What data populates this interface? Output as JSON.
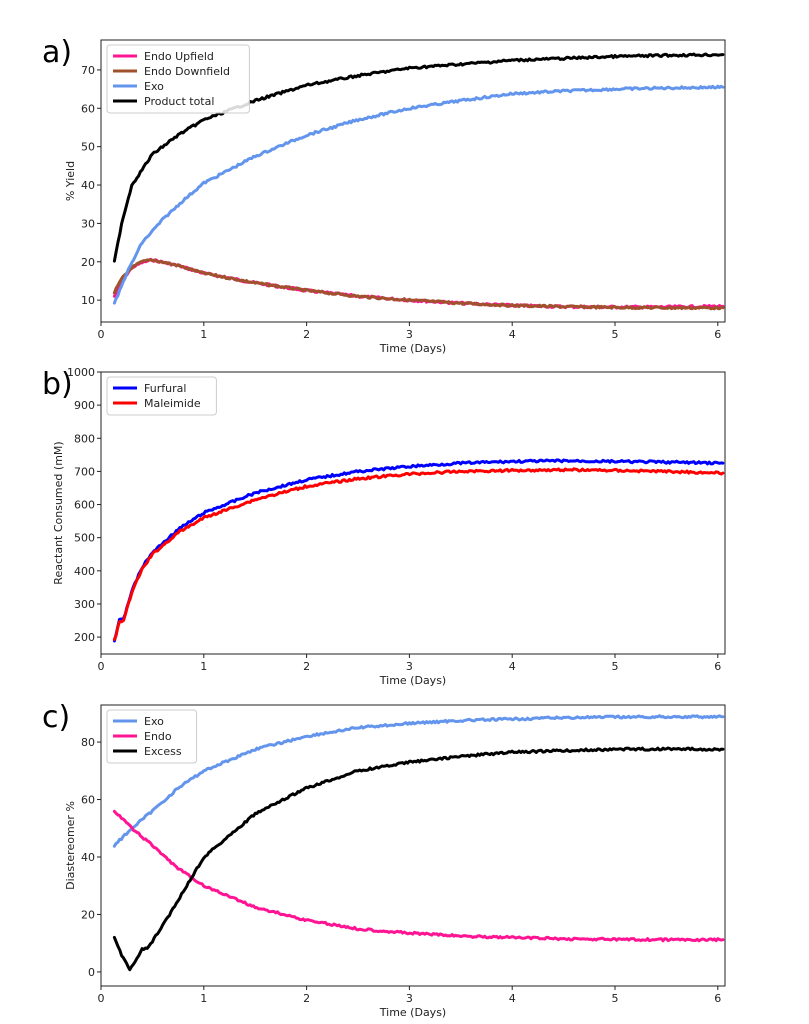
{
  "chart_data": [
    {
      "type": "line",
      "panel_label": "a)",
      "xlabel": "Time (Days)",
      "ylabel": "% Yield",
      "xlim": [
        0,
        6.07
      ],
      "ylim": [
        4.3,
        77.8
      ],
      "xticks": [
        0,
        1,
        2,
        3,
        4,
        5,
        6
      ],
      "yticks": [
        10,
        20,
        30,
        40,
        50,
        60,
        70
      ],
      "legend_position": "top-left",
      "series": [
        {
          "name": "Endo Upfield",
          "color": "#ff1493",
          "x": [
            0.13,
            0.2,
            0.3,
            0.4,
            0.5,
            0.75,
            1,
            1.5,
            2,
            2.5,
            3,
            3.5,
            4,
            4.5,
            5,
            5.5,
            6.05
          ],
          "y": [
            11,
            15,
            18.5,
            19.8,
            20.5,
            19,
            17,
            14.5,
            12.5,
            11,
            10,
            9.2,
            8.6,
            8.3,
            8.2,
            8.2,
            8.4
          ]
        },
        {
          "name": "Endo Downfield",
          "color": "#a0522d",
          "x": [
            0.13,
            0.2,
            0.3,
            0.4,
            0.5,
            0.75,
            1,
            1.5,
            2,
            2.5,
            3,
            3.5,
            4,
            4.5,
            5,
            5.5,
            6.05
          ],
          "y": [
            12,
            15.5,
            18.5,
            20,
            20.5,
            19,
            17,
            14.5,
            12.5,
            11,
            10,
            9.2,
            8.6,
            8.3,
            8.1,
            8,
            8
          ]
        },
        {
          "name": "Exo",
          "color": "#6495ed",
          "x": [
            0.13,
            0.25,
            0.4,
            0.6,
            0.8,
            1,
            1.5,
            2,
            2.5,
            3,
            3.5,
            4,
            4.5,
            5,
            5.5,
            6.05
          ],
          "y": [
            9,
            17,
            25,
            31,
            36,
            40.5,
            47.5,
            53,
            57,
            60,
            62,
            63.8,
            64.5,
            65,
            65.3,
            65.5
          ]
        },
        {
          "name": "Product total",
          "color": "#000000",
          "x": [
            0.13,
            0.2,
            0.3,
            0.5,
            0.75,
            1,
            1.5,
            2,
            2.5,
            3,
            3.5,
            4,
            4.5,
            5,
            5.5,
            6.05
          ],
          "y": [
            20,
            30,
            40,
            48,
            53,
            57,
            62,
            66,
            68.5,
            70.5,
            71.5,
            72.5,
            73,
            73.5,
            73.8,
            74
          ]
        }
      ]
    },
    {
      "type": "line",
      "panel_label": "b)",
      "xlabel": "Time (Days)",
      "ylabel": "Reactant Consumed (mM)",
      "xlim": [
        0,
        6.07
      ],
      "ylim": [
        149,
        1000
      ],
      "xticks": [
        0,
        1,
        2,
        3,
        4,
        5,
        6
      ],
      "yticks": [
        200,
        300,
        400,
        500,
        600,
        700,
        800,
        900,
        1000
      ],
      "legend_position": "top-left",
      "series": [
        {
          "name": "Furfural",
          "color": "#0000ff",
          "x": [
            0.13,
            0.18,
            0.22,
            0.3,
            0.4,
            0.5,
            0.75,
            1,
            1.5,
            2,
            2.5,
            3,
            3.5,
            4,
            4.5,
            5,
            5.5,
            6.05
          ],
          "y": [
            190,
            250,
            255,
            340,
            410,
            455,
            525,
            575,
            635,
            675,
            700,
            715,
            725,
            730,
            732,
            730,
            728,
            725
          ]
        },
        {
          "name": "Maleimide",
          "color": "#ff0000",
          "x": [
            0.13,
            0.18,
            0.22,
            0.3,
            0.4,
            0.5,
            0.75,
            1,
            1.5,
            2,
            2.5,
            3,
            3.5,
            4,
            4.5,
            5,
            5.5,
            6.05
          ],
          "y": [
            190,
            245,
            250,
            335,
            405,
            450,
            515,
            560,
            615,
            655,
            678,
            692,
            700,
            703,
            705,
            703,
            700,
            695
          ]
        }
      ]
    },
    {
      "type": "line",
      "panel_label": "c)",
      "xlabel": "Time (Days)",
      "ylabel": "Diastereomer %",
      "xlim": [
        0,
        6.07
      ],
      "ylim": [
        -4.9,
        92.9
      ],
      "xticks": [
        0,
        1,
        2,
        3,
        4,
        5,
        6
      ],
      "yticks": [
        0,
        20,
        40,
        60,
        80
      ],
      "legend_position": "top-left",
      "series": [
        {
          "name": "Exo",
          "color": "#6495ed",
          "x": [
            0.13,
            0.3,
            0.5,
            0.75,
            1,
            1.5,
            2,
            2.5,
            3,
            3.5,
            4,
            4.5,
            5,
            5.5,
            6.05
          ],
          "y": [
            44,
            50,
            56,
            64,
            70,
            77.5,
            82,
            85,
            86.5,
            87.5,
            88,
            88.5,
            88.7,
            88.8,
            88.8
          ]
        },
        {
          "name": "Endo",
          "color": "#ff1493",
          "x": [
            0.13,
            0.3,
            0.5,
            0.75,
            1,
            1.5,
            2,
            2.5,
            3,
            3.5,
            4,
            4.5,
            5,
            5.5,
            6.05
          ],
          "y": [
            56,
            50,
            44,
            36,
            30,
            22.5,
            18,
            15,
            13.5,
            12.5,
            12,
            11.5,
            11.3,
            11.2,
            11.2
          ]
        },
        {
          "name": "Excess",
          "color": "#000000",
          "x": [
            0.13,
            0.2,
            0.28,
            0.35,
            0.4,
            0.45,
            0.6,
            0.75,
            1,
            1.5,
            2,
            2.5,
            3,
            3.5,
            4,
            4.5,
            5,
            5.5,
            6.05
          ],
          "y": [
            12,
            6,
            0.5,
            5,
            8,
            8,
            16,
            25,
            40,
            55,
            64,
            70,
            73,
            75,
            76.5,
            77,
            77.5,
            77.6,
            77.5
          ]
        }
      ]
    }
  ]
}
